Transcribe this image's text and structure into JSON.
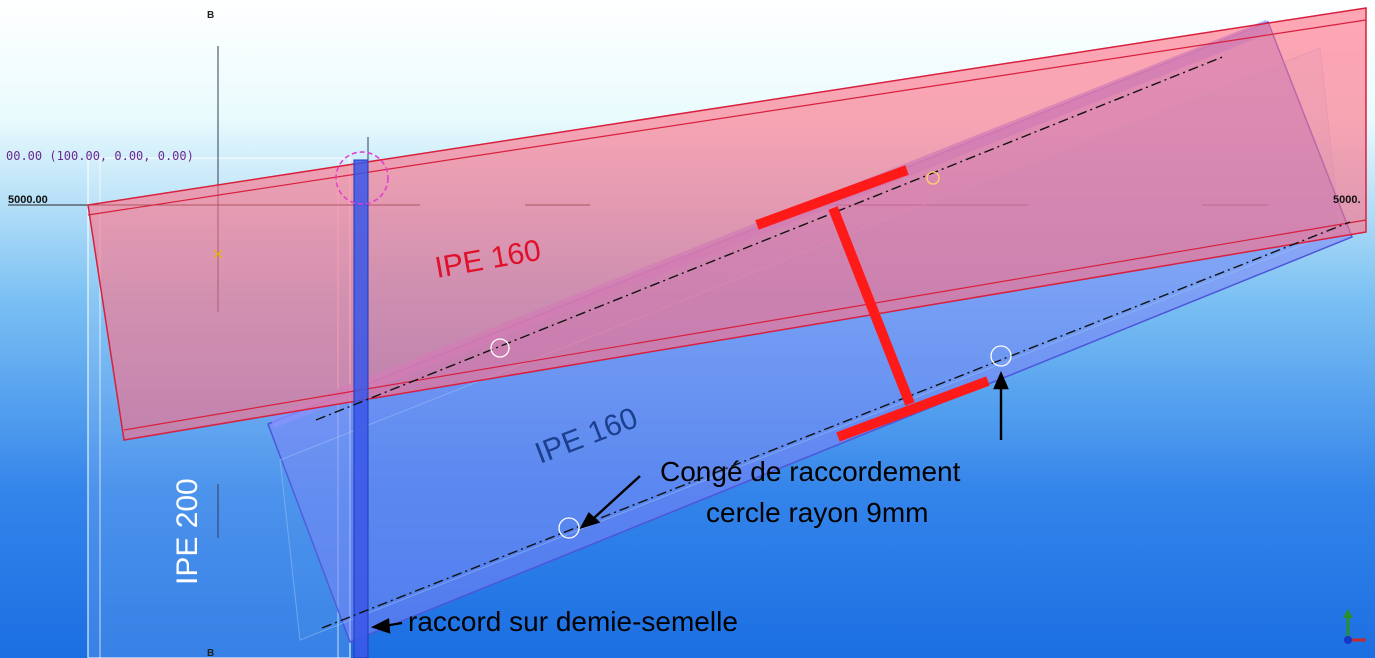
{
  "viewport": {
    "grid_label_top": "B",
    "grid_label_bottom": "B",
    "coord_readout": "00.00 (100.00, 0.00, 0.00)",
    "dim_left": "5000.00",
    "dim_right": "5000."
  },
  "labels": {
    "beam_upper": "IPE 160",
    "beam_lower": "IPE 160",
    "column": "IPE 200",
    "annotation_line1": "Congé de raccordement",
    "annotation_line2": "cercle rayon 9mm",
    "annotation_splice": "raccord sur demie-semelle"
  },
  "colors": {
    "background_top": "#e9fbfd",
    "background_bottom": "#1f73e3",
    "upper_beam": "#ff6f86",
    "lower_beam": "#6f7ff0",
    "ibeam_section": "#ff1a1a",
    "upper_label": "#e0102a",
    "lower_label": "#1c3f8f"
  },
  "icons": {
    "axis_gizmo": "xyz-axis-icon"
  }
}
